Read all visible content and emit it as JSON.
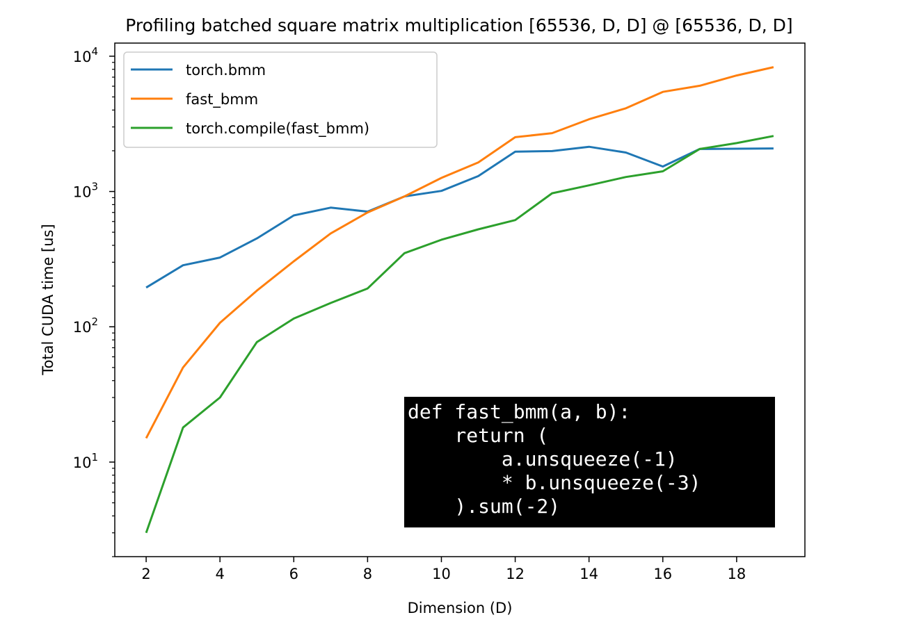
{
  "chart_data": {
    "type": "line",
    "title": "Profiling batched square matrix multiplication [65536, D, D] @ [65536, D, D]",
    "xlabel": "Dimension (D)",
    "ylabel": "Total CUDA time [us]",
    "x": [
      2,
      3,
      4,
      5,
      6,
      7,
      8,
      9,
      10,
      11,
      12,
      13,
      14,
      15,
      16,
      17,
      18,
      19
    ],
    "xlim": [
      1.15,
      19.85
    ],
    "ylim": [
      2,
      12500
    ],
    "yscale": "log",
    "xticks": [
      2,
      4,
      6,
      8,
      10,
      12,
      14,
      16,
      18
    ],
    "yticks": [
      {
        "base": "10",
        "exp": "1",
        "value": 10
      },
      {
        "base": "10",
        "exp": "2",
        "value": 100
      },
      {
        "base": "10",
        "exp": "3",
        "value": 1000
      },
      {
        "base": "10",
        "exp": "4",
        "value": 10000
      }
    ],
    "legend_position": "upper-left",
    "grid": false,
    "series": [
      {
        "name": "torch.bmm",
        "color": "#1f77b4",
        "values": [
          195,
          285,
          325,
          450,
          665,
          760,
          710,
          920,
          1010,
          1300,
          1970,
          1990,
          2140,
          1940,
          1530,
          2060,
          2070,
          2080
        ]
      },
      {
        "name": "fast_bmm",
        "color": "#ff7f0e",
        "values": [
          15,
          50,
          107,
          185,
          305,
          490,
          700,
          920,
          1260,
          1640,
          2520,
          2700,
          3420,
          4120,
          5450,
          6050,
          7200,
          8300
        ]
      },
      {
        "name": "torch.compile(fast_bmm)",
        "color": "#2ca02c",
        "values": [
          3,
          18,
          30,
          77,
          115,
          150,
          192,
          350,
          440,
          525,
          615,
          970,
          1110,
          1280,
          1410,
          2060,
          2280,
          2570
        ]
      }
    ],
    "annotation": {
      "lines": [
        "def fast_bmm(a, b):",
        "    return (",
        "        a.unsqueeze(-1)",
        "        * b.unsqueeze(-3)",
        "    ).sum(-2)"
      ],
      "background": "#000000",
      "text_color": "#ffffff"
    }
  }
}
